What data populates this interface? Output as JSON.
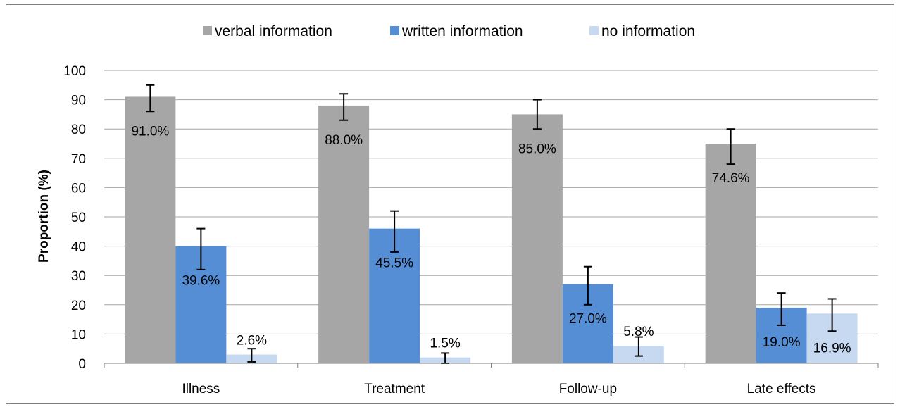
{
  "chart_data": {
    "type": "bar",
    "categories": [
      "Illness",
      "Treatment",
      "Follow-up",
      "Late effects"
    ],
    "series": [
      {
        "name": "verbal information",
        "color": "#a6a6a6",
        "values": [
          91,
          88,
          85,
          75
        ],
        "labels": [
          "91.0%",
          "88.0%",
          "85.0%",
          "74.6%"
        ],
        "err_low": [
          86,
          83,
          80,
          68
        ],
        "err_high": [
          95,
          92,
          90,
          80
        ]
      },
      {
        "name": "written information",
        "color": "#558ed5",
        "values": [
          40,
          46,
          27,
          19
        ],
        "labels": [
          "39.6%",
          "45.5%",
          "27.0%",
          "19.0%"
        ],
        "err_low": [
          32,
          38,
          20,
          13
        ],
        "err_high": [
          46,
          52,
          33,
          24
        ]
      },
      {
        "name": "no information",
        "color": "#c6d9f1",
        "values": [
          3,
          2,
          6,
          17
        ],
        "labels": [
          "2.6%",
          "1.5%",
          "5.8%",
          "16.9%"
        ],
        "err_low": [
          0.5,
          0,
          2.5,
          11
        ],
        "err_high": [
          5,
          3.5,
          9,
          22
        ]
      }
    ],
    "ylabel": "Proportion (%)",
    "xlabel": "",
    "ylim": [
      0,
      100
    ],
    "yticks": [
      "0",
      "10",
      "20",
      "30",
      "40",
      "50",
      "60",
      "70",
      "80",
      "90",
      "100"
    ],
    "grid": true,
    "legend_position": "top"
  }
}
